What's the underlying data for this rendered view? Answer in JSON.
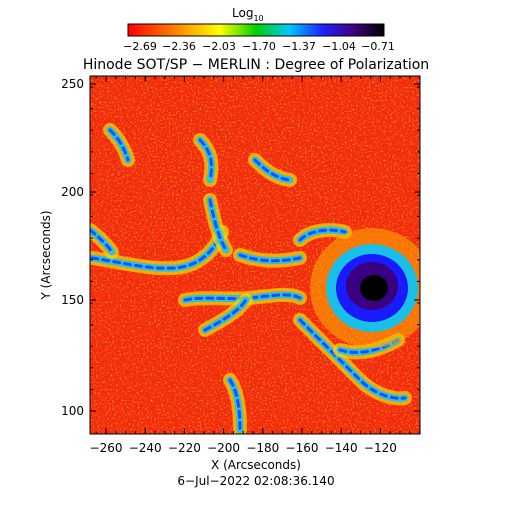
{
  "colorbar": {
    "title_main": "Log",
    "title_sub": "10",
    "ticks": [
      "−2.69",
      "−2.36",
      "−2.03",
      "−1.70",
      "−1.37",
      "−1.04",
      "−0.71"
    ]
  },
  "title": "Hinode SOT/SP − MERLIN : Degree of Polarization",
  "xlabel": "X (Arcseconds)",
  "ylabel": "Y (Arcseconds)",
  "x_ticks": [
    "−260",
    "−240",
    "−220",
    "−200",
    "−180",
    "−160",
    "−140",
    "−120"
  ],
  "y_ticks": [
    "100",
    "150",
    "200",
    "250"
  ],
  "date": "6−Jul−2022 02:08:36.140",
  "colors": {
    "low": "#ff0000",
    "mid_orange": "#ff8c00",
    "mid_yellow": "#ffff00",
    "mid_green": "#00cc00",
    "mid_cyan": "#00c8ff",
    "mid_blue": "#0000ff",
    "high": "#000000"
  }
}
